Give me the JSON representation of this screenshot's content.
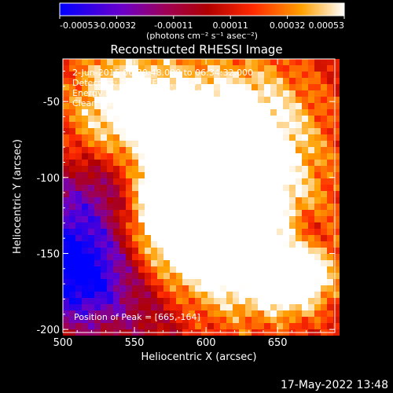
{
  "chart_data": {
    "type": "heatmap",
    "title": "Reconstructed RHESSI Image",
    "colorbar": {
      "ticks": [
        "-0.00053",
        "-0.00032",
        "-0.00011",
        "0.00011",
        "0.00032",
        "0.00053"
      ],
      "unit_label": "(photons cm⁻² s⁻¹ asec⁻²)",
      "range": [
        -0.00053,
        0.00053
      ]
    },
    "xlabel": "Heliocentric X (arcsec)",
    "ylabel": "Heliocentric Y (arcsec)",
    "xlim": [
      500,
      690
    ],
    "ylim": [
      -202,
      -22
    ],
    "xticks": [
      "500",
      "550",
      "600",
      "650"
    ],
    "yticks": [
      "-50",
      "-100",
      "-150",
      "-200"
    ],
    "annotations": [
      "2-Jun-2015 06:30:48.000 to 06:34:32.000",
      "Detectors: 3F 6F 7F 9F, Att 0",
      "Energy Range: 25.0 - 50.0 keV",
      "Clean     Total counts: 2.64E+03"
    ],
    "peak_label": "Position of Peak = [665,-164]",
    "peak": [
      665,
      -164
    ]
  },
  "footer": {
    "date": "17-May-2022 13:48"
  },
  "colors": {
    "background": "#000000",
    "text": "#ffffff"
  }
}
